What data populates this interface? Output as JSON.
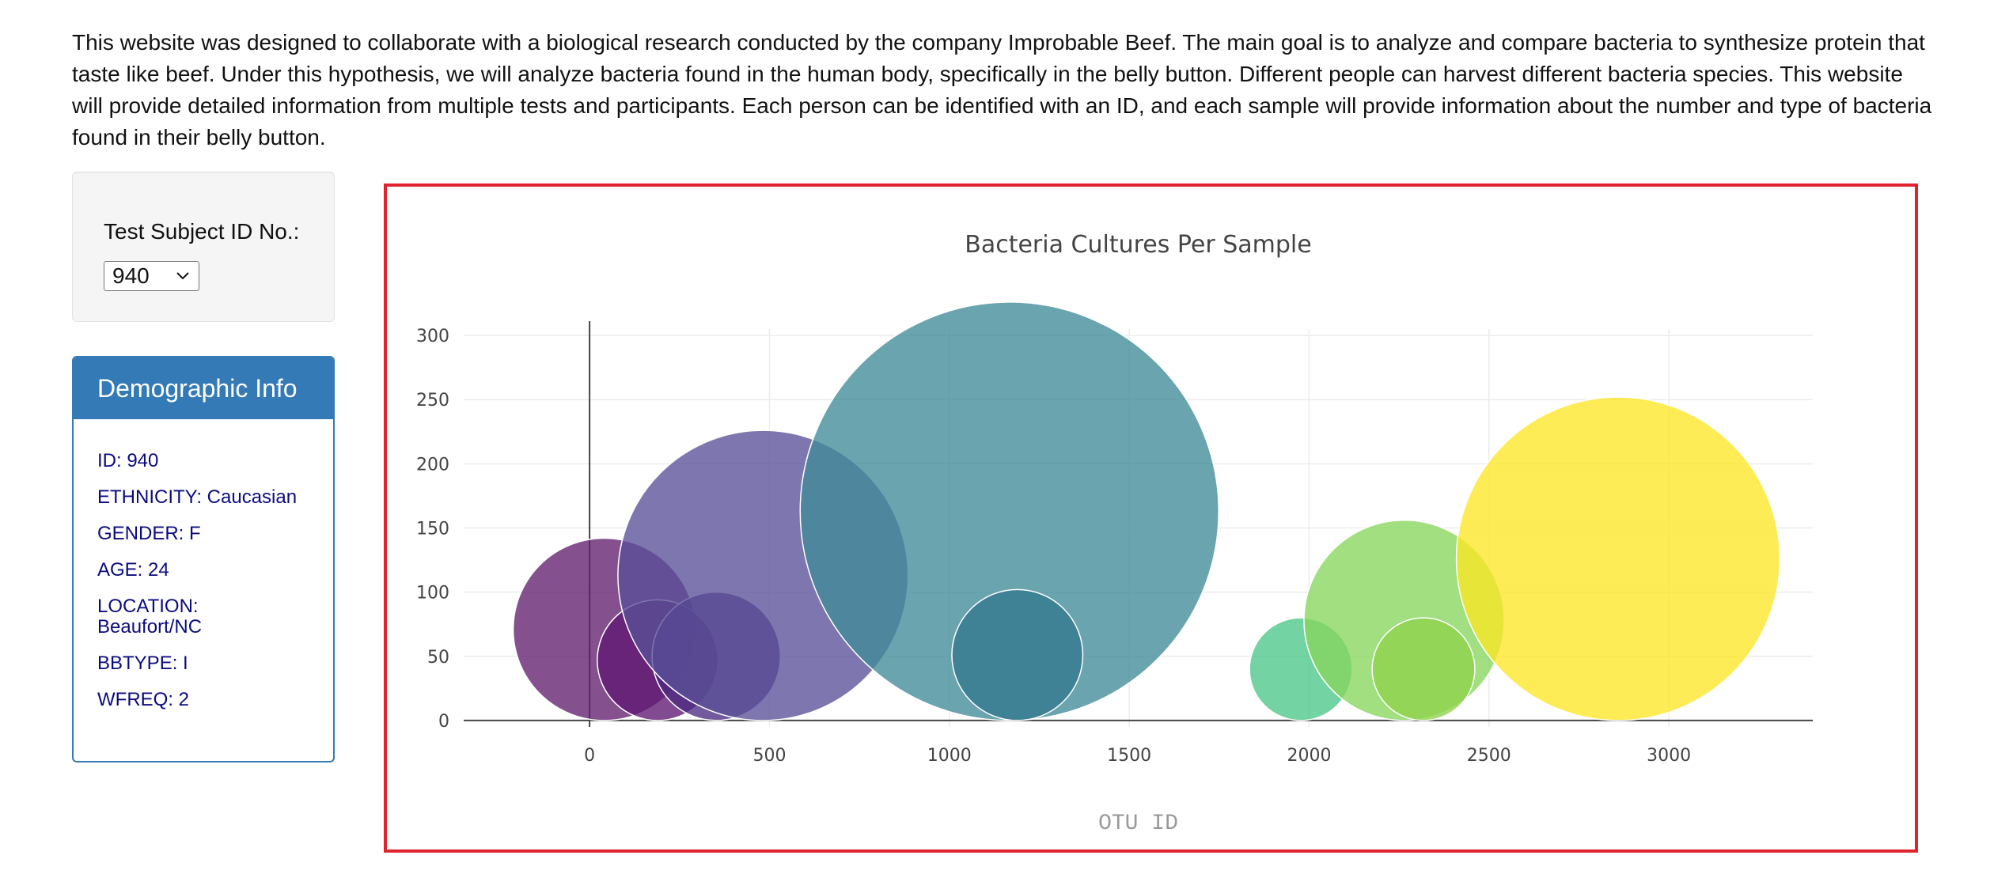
{
  "intro": {
    "text": "This website was designed to collaborate with a biological research conducted by the company Improbable Beef. The main goal is to analyze and compare bacteria to synthesize protein that taste like beef. Under this hypothesis, we will analyze bacteria found in the human body, specifically in the belly button. Different people can harvest different bacteria species. This website will provide detailed information from multiple tests and participants. Each person can be identified with an ID, and each sample will provide information about the number and type of bacteria found in their belly button."
  },
  "selector": {
    "label": "Test Subject ID No.:",
    "selected": "940"
  },
  "demographics": {
    "heading": "Demographic Info",
    "rows": [
      "ID: 940",
      "ETHNICITY: Caucasian",
      "GENDER: F",
      "AGE: 24",
      "LOCATION: Beaufort/NC",
      "BBTYPE: I",
      "WFREQ: 2"
    ]
  },
  "colors": {
    "panel_blue": "#337ab7",
    "frame_red": "#e0242f",
    "meta_text": "#0b0b80"
  },
  "chart_data": {
    "type": "scatter",
    "title": "Bacteria Cultures Per Sample",
    "xlabel": "OTU ID",
    "ylabel": "",
    "xlim": [
      -350,
      3400
    ],
    "ylim": [
      -5,
      305
    ],
    "xticks": [
      0,
      500,
      1000,
      1500,
      2000,
      2500,
      3000
    ],
    "yticks": [
      0,
      50,
      100,
      150,
      200,
      250,
      300
    ],
    "grid": true,
    "legend": "none",
    "colorscale": "Viridis",
    "series": [
      {
        "points": [
          {
            "x": 41,
            "y": 71,
            "color": "#611f6e"
          },
          {
            "x": 189,
            "y": 47,
            "color": "#5f1872"
          },
          {
            "x": 352,
            "y": 50,
            "color": "#4b2c80"
          },
          {
            "x": 482,
            "y": 113,
            "color": "#5a4f97"
          },
          {
            "x": 1167,
            "y": 163,
            "color": "#3f8a98"
          },
          {
            "x": 1189,
            "y": 51,
            "color": "#33798e"
          },
          {
            "x": 1977,
            "y": 40,
            "color": "#4dc688"
          },
          {
            "x": 2264,
            "y": 78,
            "color": "#86d65c"
          },
          {
            "x": 2318,
            "y": 40,
            "color": "#8ed24c"
          },
          {
            "x": 2859,
            "y": 126,
            "color": "#fde725"
          }
        ]
      }
    ]
  }
}
